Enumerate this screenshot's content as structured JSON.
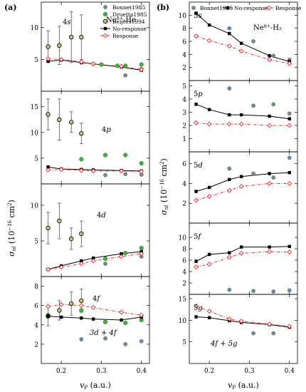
{
  "figure": {
    "panel_a_label": "(a)",
    "panel_b_label": "(b)",
    "ylabel_a_sigma": "σ",
    "ylabel_a_sub": "nl",
    "ylabel_a_rest": " (10",
    "ylabel_a_exp": "−16",
    "ylabel_a_unit": " cm",
    "ylabel_a_unitexp": "2",
    "ylabel_a_close": ")",
    "xlabel_v": "v",
    "xlabel_sub": "P",
    "xlabel_unit": " (a.u.)",
    "system_a": "Ne⁸⁺-He",
    "system_b": "Ne⁸⁺-H₂"
  },
  "chart_data": [
    {
      "type": "scatter",
      "panel": "a-4s",
      "label": "4s",
      "xlim": [
        0.15,
        0.42
      ],
      "ylim": [
        0,
        14
      ],
      "yticks": [
        5,
        10
      ],
      "legend": [
        "Bonnet1985",
        "Druetta1985",
        "Beijers1994",
        "No-response",
        "Response"
      ],
      "series": [
        {
          "name": "Bonnet1985",
          "x": [
            0.25,
            0.36,
            0.4
          ],
          "y": [
            4.5,
            2.5,
            3.5
          ]
        },
        {
          "name": "Druetta1985",
          "x": [
            0.3,
            0.34,
            0.36,
            0.4
          ],
          "y": [
            4.2,
            4.0,
            4.0,
            4.2
          ]
        },
        {
          "name": "Beijers1994",
          "x": [
            0.167,
            0.195,
            0.225,
            0.25
          ],
          "y": [
            7.0,
            7.2,
            8.5,
            8.5
          ],
          "err": [
            2.5,
            3.0,
            4.0,
            3.5
          ]
        },
        {
          "name": "No-response",
          "x": [
            0.167,
            0.2,
            0.25,
            0.28,
            0.35,
            0.4
          ],
          "y": [
            4.7,
            4.9,
            4.5,
            4.3,
            3.8,
            3.3
          ]
        },
        {
          "name": "Response",
          "x": [
            0.167,
            0.2,
            0.25,
            0.28,
            0.35,
            0.4
          ],
          "y": [
            5.1,
            5.0,
            4.6,
            4.3,
            3.9,
            3.4
          ]
        }
      ]
    },
    {
      "type": "scatter",
      "panel": "a-4p",
      "label": "4p",
      "xlim": [
        0.15,
        0.42
      ],
      "ylim": [
        0,
        18
      ],
      "yticks": [
        5,
        10,
        15
      ],
      "series": [
        {
          "name": "Bonnet1985",
          "x": [
            0.31,
            0.36,
            0.4
          ],
          "y": [
            1.7,
            1.9,
            1.8
          ]
        },
        {
          "name": "Druetta1985",
          "x": [
            0.25,
            0.31,
            0.36,
            0.4
          ],
          "y": [
            4.8,
            5.6,
            5.6,
            4.0
          ]
        },
        {
          "name": "Beijers1994",
          "x": [
            0.167,
            0.195,
            0.225,
            0.25
          ],
          "y": [
            13.5,
            12.5,
            12.0,
            9.8
          ],
          "err": [
            3.0,
            4.0,
            2.0,
            2.0
          ]
        },
        {
          "name": "No-response",
          "x": [
            0.167,
            0.2,
            0.25,
            0.28,
            0.35,
            0.4
          ],
          "y": [
            3.3,
            2.9,
            2.8,
            2.7,
            2.6,
            2.5
          ]
        },
        {
          "name": "Response",
          "x": [
            0.167,
            0.2,
            0.25,
            0.28,
            0.35,
            0.4
          ],
          "y": [
            2.7,
            2.8,
            2.6,
            2.5,
            2.5,
            2.4
          ]
        }
      ]
    },
    {
      "type": "scatter",
      "panel": "a-4d",
      "label": "4d",
      "xlim": [
        0.15,
        0.42
      ],
      "ylim": [
        0,
        13
      ],
      "yticks": [
        5,
        10
      ],
      "series": [
        {
          "name": "Bonnet1985",
          "x": [
            0.31,
            0.4
          ],
          "y": [
            1.8,
            2.8
          ]
        },
        {
          "name": "Druetta1985",
          "x": [
            0.31,
            0.36,
            0.4
          ],
          "y": [
            2.5,
            3.3,
            4.0
          ]
        },
        {
          "name": "Beijers1994",
          "x": [
            0.167,
            0.195,
            0.225,
            0.25
          ],
          "y": [
            6.8,
            7.8,
            5.3,
            6.0
          ],
          "err": [
            2.2,
            2.5,
            1.5,
            1.8
          ]
        },
        {
          "name": "No-response",
          "x": [
            0.167,
            0.2,
            0.25,
            0.28,
            0.35,
            0.4
          ],
          "y": [
            1.0,
            1.5,
            2.2,
            2.6,
            3.2,
            3.5
          ]
        },
        {
          "name": "Response",
          "x": [
            0.167,
            0.2,
            0.25,
            0.28,
            0.35,
            0.4
          ],
          "y": [
            1.0,
            1.3,
            1.8,
            2.2,
            2.8,
            3.2
          ]
        }
      ]
    },
    {
      "type": "scatter",
      "panel": "a-4f",
      "label": "4f",
      "label2": "3d + 4f",
      "xlim": [
        0.15,
        0.42
      ],
      "ylim": [
        0,
        9
      ],
      "yticks": [
        2,
        4,
        6,
        8
      ],
      "series": [
        {
          "name": "Bonnet1985",
          "x": [
            0.25,
            0.31,
            0.36,
            0.4
          ],
          "y": [
            2.5,
            2.6,
            2.0,
            2.3
          ]
        },
        {
          "name": "Druetta1985",
          "x": [
            0.167,
            0.25,
            0.31,
            0.36,
            0.4
          ],
          "y": [
            5.0,
            5.5,
            4.3,
            4.2,
            4.5
          ]
        },
        {
          "name": "Beijers1994",
          "x": [
            0.167,
            0.195,
            0.225,
            0.25
          ],
          "y": [
            4.9,
            5.5,
            6.2,
            6.5
          ],
          "err": [
            1.0,
            1.0,
            1.2,
            1.2
          ]
        },
        {
          "name": "No-response",
          "x": [
            0.167,
            0.2,
            0.25,
            0.28,
            0.35,
            0.4
          ],
          "y": [
            4.9,
            4.8,
            4.7,
            4.6,
            4.5,
            4.8
          ]
        },
        {
          "name": "Response",
          "x": [
            0.167,
            0.2,
            0.25,
            0.28,
            0.35,
            0.4
          ],
          "y": [
            5.9,
            6.1,
            6.0,
            5.8,
            5.3,
            5.0
          ]
        }
      ]
    },
    {
      "type": "scatter",
      "panel": "b-5s",
      "label": "5s",
      "xlim": [
        0.15,
        0.42
      ],
      "ylim": [
        0,
        12
      ],
      "yticks": [
        2,
        4,
        6,
        8,
        10
      ],
      "legend": [
        "Bonnet1985",
        "No-response",
        "Response"
      ],
      "series": [
        {
          "name": "Bonnet1985",
          "x": [
            0.25,
            0.31,
            0.36,
            0.4
          ],
          "y": [
            8.0,
            6.0,
            3.8,
            3.2
          ]
        },
        {
          "name": "No-response",
          "x": [
            0.167,
            0.2,
            0.25,
            0.28,
            0.35,
            0.4
          ],
          "y": [
            10.3,
            8.5,
            7.2,
            5.7,
            3.8,
            2.9
          ]
        },
        {
          "name": "Response",
          "x": [
            0.167,
            0.2,
            0.25,
            0.28,
            0.35,
            0.4
          ],
          "y": [
            6.8,
            6.1,
            5.3,
            4.5,
            3.2,
            2.6
          ]
        }
      ]
    },
    {
      "type": "scatter",
      "panel": "b-5p",
      "label": "5p",
      "xlim": [
        0.15,
        0.42
      ],
      "ylim": [
        0,
        5.4
      ],
      "yticks": [
        1,
        2,
        3,
        4,
        5
      ],
      "series": [
        {
          "name": "Bonnet1985",
          "x": [
            0.25,
            0.31,
            0.36,
            0.4
          ],
          "y": [
            4.8,
            3.5,
            3.6,
            2.9
          ]
        },
        {
          "name": "No-response",
          "x": [
            0.167,
            0.2,
            0.25,
            0.28,
            0.35,
            0.4
          ],
          "y": [
            3.6,
            3.2,
            2.8,
            2.8,
            2.7,
            2.5
          ]
        },
        {
          "name": "Response",
          "x": [
            0.167,
            0.2,
            0.25,
            0.28,
            0.35,
            0.4
          ],
          "y": [
            2.2,
            2.1,
            2.1,
            2.1,
            2.0,
            2.0
          ]
        }
      ]
    },
    {
      "type": "scatter",
      "panel": "b-5d",
      "label": "5d",
      "xlim": [
        0.15,
        0.42
      ],
      "ylim": [
        0,
        7.2
      ],
      "yticks": [
        2,
        4,
        6
      ],
      "series": [
        {
          "name": "Bonnet1985",
          "x": [
            0.25,
            0.31,
            0.36,
            0.4
          ],
          "y": [
            5.5,
            5.0,
            4.6,
            6.6
          ]
        },
        {
          "name": "No-response",
          "x": [
            0.167,
            0.2,
            0.25,
            0.28,
            0.35,
            0.4
          ],
          "y": [
            3.2,
            3.6,
            4.4,
            4.7,
            5.0,
            5.1
          ]
        },
        {
          "name": "Response",
          "x": [
            0.167,
            0.2,
            0.25,
            0.28,
            0.35,
            0.4
          ],
          "y": [
            2.3,
            2.7,
            3.3,
            3.7,
            4.0,
            4.0
          ]
        }
      ]
    },
    {
      "type": "scatter",
      "panel": "b-5f",
      "label": "5f",
      "xlim": [
        0.15,
        0.42
      ],
      "ylim": [
        0,
        12.5
      ],
      "yticks": [
        2,
        4,
        6,
        8,
        10
      ],
      "series": [
        {
          "name": "Bonnet1985",
          "x": [
            0.25,
            0.31,
            0.36,
            0.4
          ],
          "y": [
            0.8,
            0.6,
            0.5,
            0.7
          ]
        },
        {
          "name": "No-response",
          "x": [
            0.167,
            0.2,
            0.25,
            0.28,
            0.35,
            0.4
          ],
          "y": [
            5.8,
            7.0,
            7.3,
            8.3,
            8.3,
            8.4
          ]
        },
        {
          "name": "Response",
          "x": [
            0.167,
            0.2,
            0.25,
            0.28,
            0.35,
            0.4
          ],
          "y": [
            4.8,
            5.3,
            6.5,
            7.2,
            7.5,
            7.4
          ]
        }
      ]
    },
    {
      "type": "scatter",
      "panel": "b-5g",
      "label": "5g",
      "label2": "4f + 5g",
      "xlim": [
        0.15,
        0.42
      ],
      "ylim": [
        0,
        16
      ],
      "yticks": [
        5,
        10,
        15
      ],
      "series": [
        {
          "name": "Bonnet1985",
          "x": [
            0.31,
            0.36
          ],
          "y": [
            7.0,
            7.0
          ]
        },
        {
          "name": "No-response",
          "x": [
            0.167,
            0.2,
            0.25,
            0.28,
            0.35,
            0.4
          ],
          "y": [
            10.8,
            10.6,
            9.9,
            9.5,
            9.0,
            8.4
          ]
        },
        {
          "name": "Response",
          "x": [
            0.167,
            0.2,
            0.25,
            0.28,
            0.35,
            0.4
          ],
          "y": [
            13.3,
            12.1,
            10.3,
            9.8,
            9.1,
            8.6
          ]
        }
      ]
    }
  ],
  "xticks": [
    0.2,
    0.3,
    0.4
  ],
  "colors": {
    "bonnet": "#6f8a9a",
    "druetta": "#3db03d",
    "beijers": "#c9c07a",
    "noresp": "#000000",
    "resp": "#e8282a",
    "err": "#555555"
  }
}
